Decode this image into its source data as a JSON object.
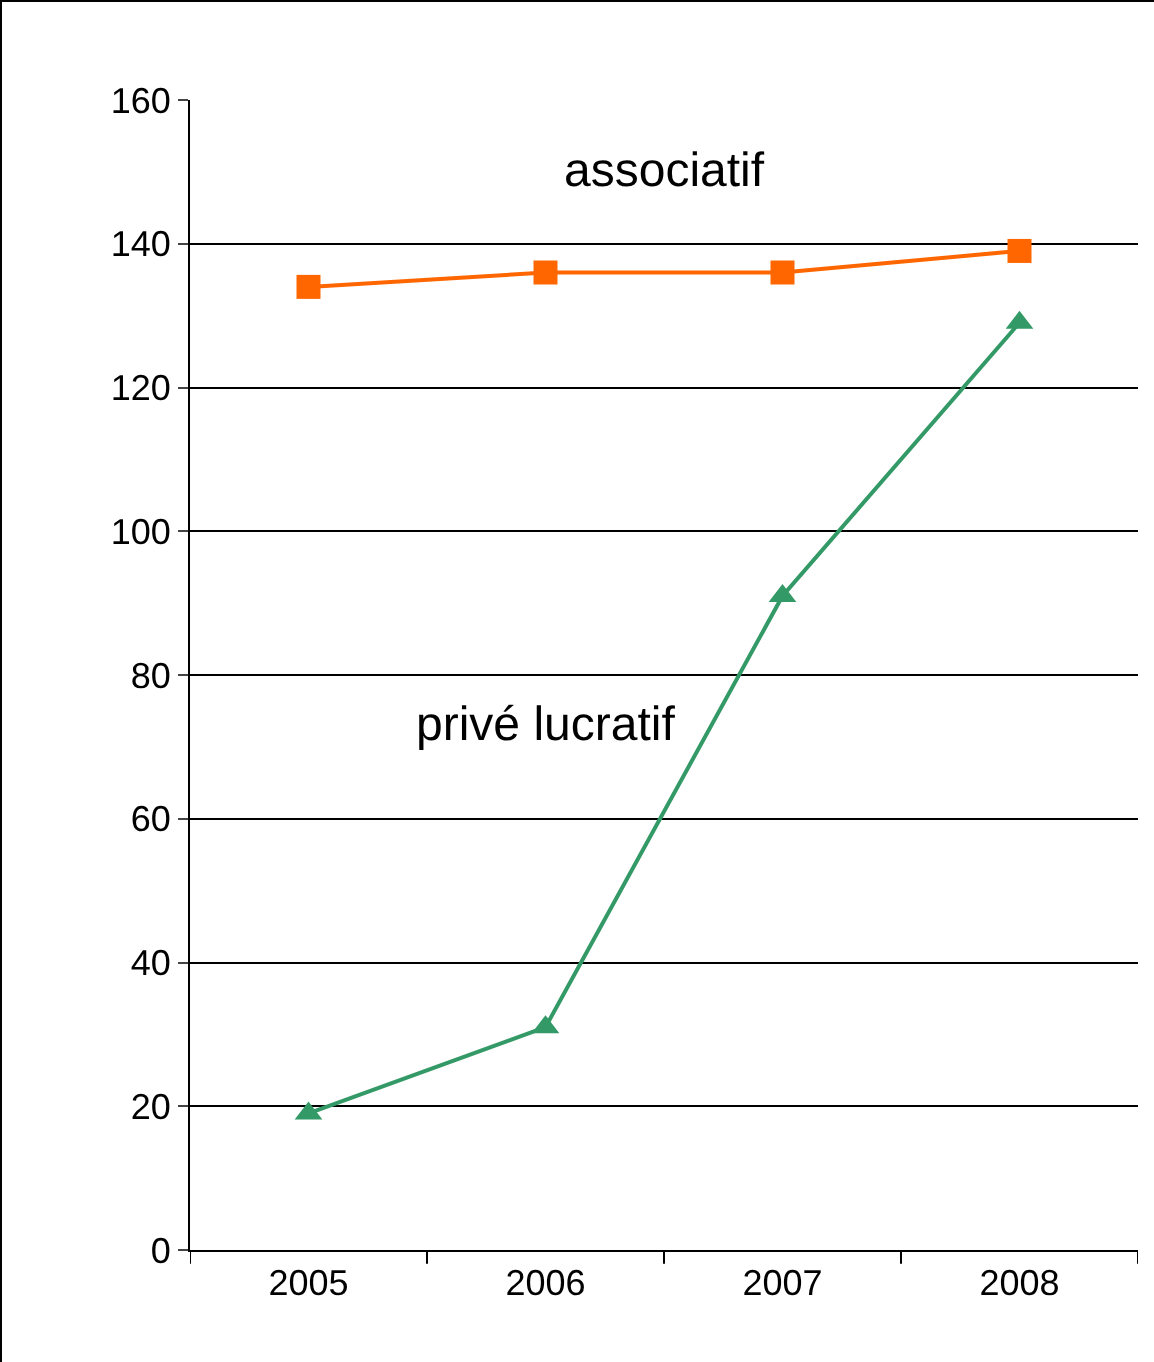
{
  "chart_data": {
    "type": "line",
    "categories": [
      "2005",
      "2006",
      "2007",
      "2008"
    ],
    "series": [
      {
        "name": "associatif",
        "color": "#ff6600",
        "marker": "square",
        "values": [
          134,
          136,
          136,
          139
        ]
      },
      {
        "name": "privé lucratif",
        "color": "#339966",
        "marker": "triangle",
        "values": [
          19,
          31,
          91,
          129
        ]
      }
    ],
    "ylim": [
      0,
      160
    ],
    "yticks": [
      0,
      20,
      40,
      60,
      80,
      100,
      120,
      140,
      160
    ],
    "grid": "y",
    "legend": false
  }
}
